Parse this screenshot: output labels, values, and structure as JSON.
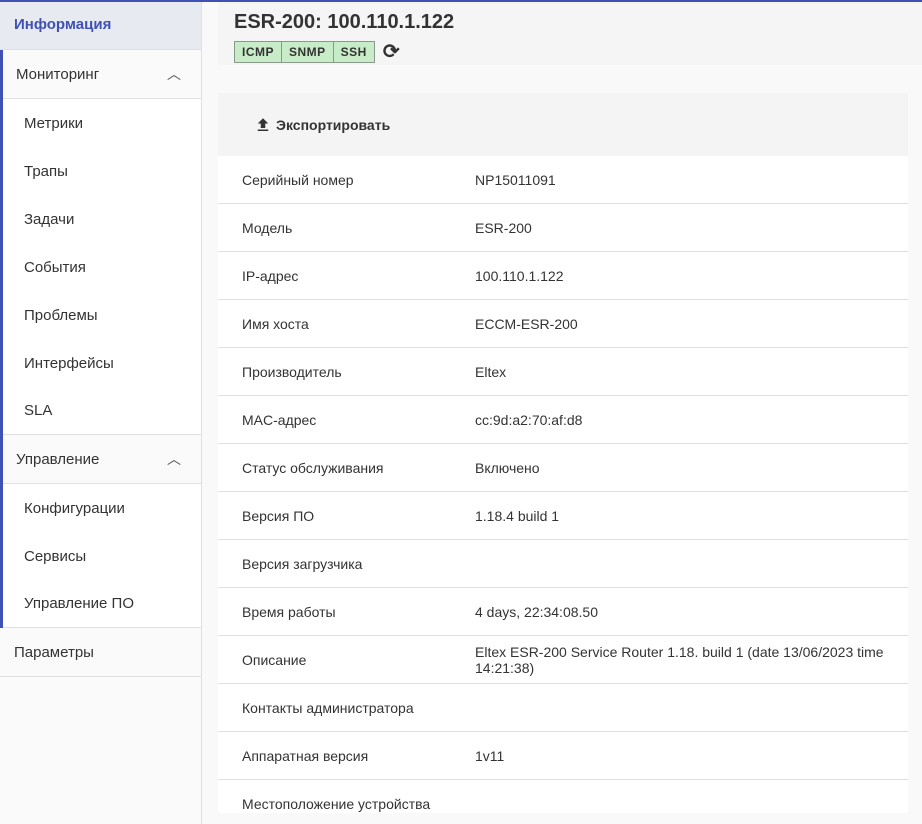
{
  "sidebar": {
    "info": "Информация",
    "monitoring": {
      "label": "Мониторинг",
      "items": [
        "Метрики",
        "Трапы",
        "Задачи",
        "События",
        "Проблемы",
        "Интерфейсы",
        "SLA"
      ]
    },
    "management": {
      "label": "Управление",
      "items": [
        "Конфигурации",
        "Сервисы",
        "Управление ПО"
      ]
    },
    "params": "Параметры"
  },
  "header": {
    "title": "ESR-200: 100.110.1.122",
    "badges": [
      "ICMP",
      "SNMP",
      "SSH"
    ],
    "badge_color": "#c8ecc8"
  },
  "toolbar": {
    "export_label": "Экспортировать"
  },
  "rows": [
    {
      "label": "Серийный номер",
      "value": "NP15011091"
    },
    {
      "label": "Модель",
      "value": "ESR-200"
    },
    {
      "label": "IP-адрес",
      "value": "100.110.1.122"
    },
    {
      "label": "Имя хоста",
      "value": "ECCM-ESR-200"
    },
    {
      "label": "Производитель",
      "value": "Eltex"
    },
    {
      "label": "MAC-адрес",
      "value": "cc:9d:a2:70:af:d8"
    },
    {
      "label": "Статус обслуживания",
      "value": "Включено"
    },
    {
      "label": "Версия ПО",
      "value": "1.18.4 build 1"
    },
    {
      "label": "Версия загрузчика",
      "value": ""
    },
    {
      "label": "Время работы",
      "value": "4 days, 22:34:08.50"
    },
    {
      "label": "Описание",
      "value": "Eltex ESR-200 Service Router 1.18. build 1 (date 13/06/2023 time 14:21:38)"
    },
    {
      "label": "Контакты администратора",
      "value": ""
    },
    {
      "label": "Аппаратная версия",
      "value": "1v11"
    },
    {
      "label": "Местоположение устройства",
      "value": ""
    }
  ],
  "accent": "#3f51b5"
}
